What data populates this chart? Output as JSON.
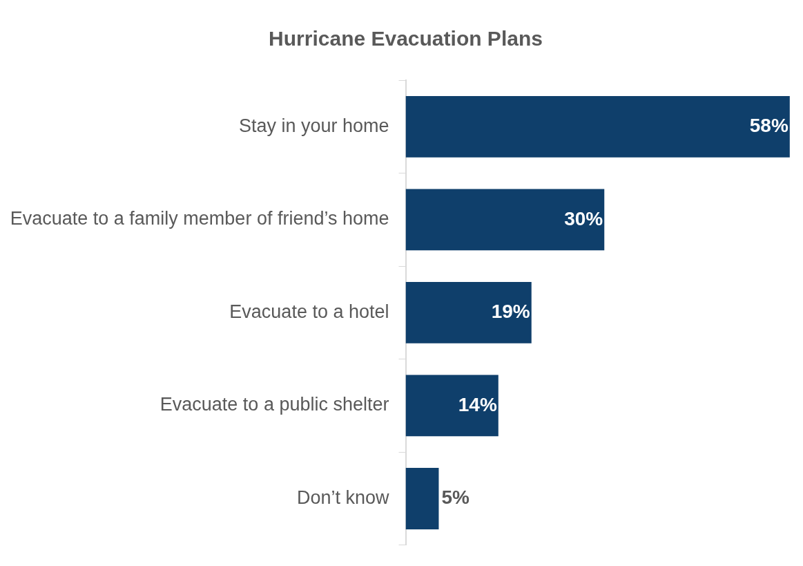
{
  "chart_data": {
    "type": "bar",
    "orientation": "horizontal",
    "title": "Hurricane Evacuation Plans",
    "categories": [
      "Stay in your home",
      "Evacuate to a family member of friend’s home",
      "Evacuate to a hotel",
      "Evacuate to a public shelter",
      "Don’t know"
    ],
    "values": [
      58,
      30,
      19,
      14,
      5
    ],
    "value_labels": [
      "58%",
      "30%",
      "19%",
      "14%",
      "5%"
    ],
    "color": "#0f3f6b",
    "grid": false,
    "legend": false,
    "tick_labels": "y"
  }
}
